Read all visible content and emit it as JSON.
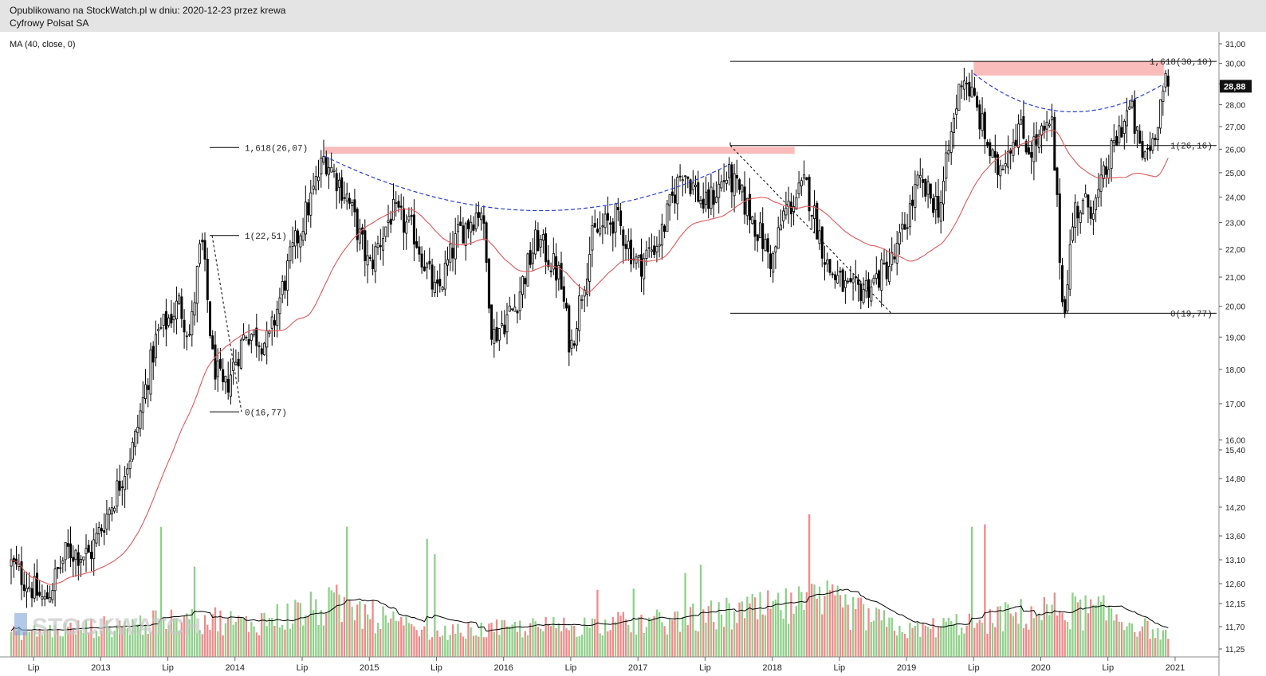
{
  "header": {
    "published": "Opublikowano na StockWatch.pl w dniu: 2020-12-23 przez krewa",
    "instrument": "Cyfrowy Polsat SA"
  },
  "indicator": "MA (40, close, 0)",
  "watermark": "STOCKWATCH",
  "last_price": "28,88",
  "colors": {
    "up": "#ffffff",
    "down": "#000000",
    "ma": "#e05858",
    "vol_up": "#8fd08a",
    "vol_down": "#f08a8a",
    "zone": "#f9b4b4",
    "arc": "#2a3fd6",
    "last_price_bg": "#111111"
  },
  "chart_data": {
    "type": "candlestick",
    "y_scale": "log",
    "y_ticks": [
      "31,00",
      "30,00",
      "29,00",
      "28,00",
      "27,00",
      "26,00",
      "25,00",
      "24,00",
      "23,00",
      "22,00",
      "21,00",
      "20,00",
      "19,00",
      "18,00",
      "17,00",
      "16,00",
      "15,40",
      "14,80",
      "14,20",
      "13,60",
      "13,10",
      "12,60",
      "12,15",
      "11,70",
      "11,25"
    ],
    "x_ticks": [
      "Lip",
      "2013",
      "Lip",
      "2014",
      "Lip",
      "2015",
      "Lip",
      "2016",
      "Lip",
      "2017",
      "Lip",
      "2018",
      "Lip",
      "2019",
      "Lip",
      "2020",
      "Lip",
      "2021"
    ],
    "fib_levels": [
      {
        "label": "1,618(26,07)",
        "value": 26.07
      },
      {
        "label": "1(22,51)",
        "value": 22.51
      },
      {
        "label": "0(16,77)",
        "value": 16.77
      },
      {
        "label": "1,618(30,10)",
        "value": 30.1
      },
      {
        "label": "1(26,16)",
        "value": 26.16
      },
      {
        "label": "0(19,77)",
        "value": 19.77
      }
    ],
    "resistance_zones": [
      {
        "from": "2014-09",
        "to": "2018-03",
        "low": 25.8,
        "high": 26.1
      },
      {
        "from": "2019-07",
        "to": "2020-12",
        "low": 29.4,
        "high": 30.1
      }
    ],
    "price_anchors": [
      [
        "2012-05",
        13.0
      ],
      [
        "2012-08",
        12.2
      ],
      [
        "2012-10",
        13.3
      ],
      [
        "2012-12",
        13.2
      ],
      [
        "2013-02",
        14.4
      ],
      [
        "2013-04",
        15.9
      ],
      [
        "2013-06",
        19.0
      ],
      [
        "2013-08",
        20.1
      ],
      [
        "2013-09",
        19.0
      ],
      [
        "2013-10",
        22.4
      ],
      [
        "2013-11",
        18.3
      ],
      [
        "2013-12",
        17.3
      ],
      [
        "2014-02",
        19.2
      ],
      [
        "2014-04",
        18.8
      ],
      [
        "2014-06",
        21.7
      ],
      [
        "2014-08",
        24.2
      ],
      [
        "2014-09",
        25.7
      ],
      [
        "2014-11",
        24.0
      ],
      [
        "2015-01",
        21.3
      ],
      [
        "2015-03",
        23.4
      ],
      [
        "2015-05",
        22.6
      ],
      [
        "2015-07",
        20.3
      ],
      [
        "2015-09",
        22.6
      ],
      [
        "2015-11",
        23.6
      ],
      [
        "2015-12",
        19.0
      ],
      [
        "2016-02",
        20.0
      ],
      [
        "2016-04",
        22.4
      ],
      [
        "2016-06",
        21.0
      ],
      [
        "2016-07",
        18.6
      ],
      [
        "2016-09",
        22.5
      ],
      [
        "2016-11",
        23.2
      ],
      [
        "2017-01",
        21.4
      ],
      [
        "2017-03",
        22.4
      ],
      [
        "2017-05",
        25.2
      ],
      [
        "2017-07",
        23.6
      ],
      [
        "2017-09",
        24.9
      ],
      [
        "2017-11",
        23.4
      ],
      [
        "2018-01",
        21.5
      ],
      [
        "2018-02",
        23.3
      ],
      [
        "2018-04",
        24.5
      ],
      [
        "2018-06",
        21.3
      ],
      [
        "2018-08",
        20.4
      ],
      [
        "2018-10",
        20.8
      ],
      [
        "2018-12",
        21.7
      ],
      [
        "2019-02",
        24.5
      ],
      [
        "2019-04",
        23.6
      ],
      [
        "2019-06",
        29.6
      ],
      [
        "2019-07",
        28.2
      ],
      [
        "2019-09",
        25.0
      ],
      [
        "2019-11",
        27.0
      ],
      [
        "2019-12",
        26.0
      ],
      [
        "2020-02",
        27.0
      ],
      [
        "2020-03",
        19.6
      ],
      [
        "2020-04",
        23.5
      ],
      [
        "2020-06",
        23.8
      ],
      [
        "2020-08",
        26.8
      ],
      [
        "2020-09",
        27.9
      ],
      [
        "2020-10",
        25.6
      ],
      [
        "2020-11",
        26.4
      ],
      [
        "2020-12",
        28.88
      ]
    ],
    "volume_anchors": [
      [
        "2012-05",
        0.3
      ],
      [
        "2013-11",
        0.62
      ],
      [
        "2014-02",
        0.5
      ],
      [
        "2014-10",
        0.95
      ],
      [
        "2015-06",
        0.3
      ],
      [
        "2016-01",
        0.4
      ],
      [
        "2017-03",
        0.55
      ],
      [
        "2018-06",
        1.0
      ],
      [
        "2019-01",
        0.35
      ],
      [
        "2020-03",
        0.85
      ],
      [
        "2020-07",
        0.75
      ],
      [
        "2020-12",
        0.25
      ]
    ]
  }
}
